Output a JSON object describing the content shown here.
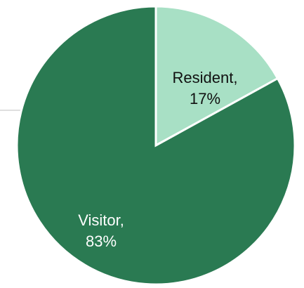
{
  "chart_data": {
    "type": "pie",
    "start_angle": 0,
    "direction": "clockwise",
    "slices": [
      {
        "label": "Resident",
        "value": 17,
        "value_text": "17%",
        "color": "#a8e0c5",
        "text_color": "#111111"
      },
      {
        "label": "Visitor",
        "value": 83,
        "value_text": "83%",
        "color": "#2a7a52",
        "text_color": "#ffffff"
      }
    ]
  }
}
